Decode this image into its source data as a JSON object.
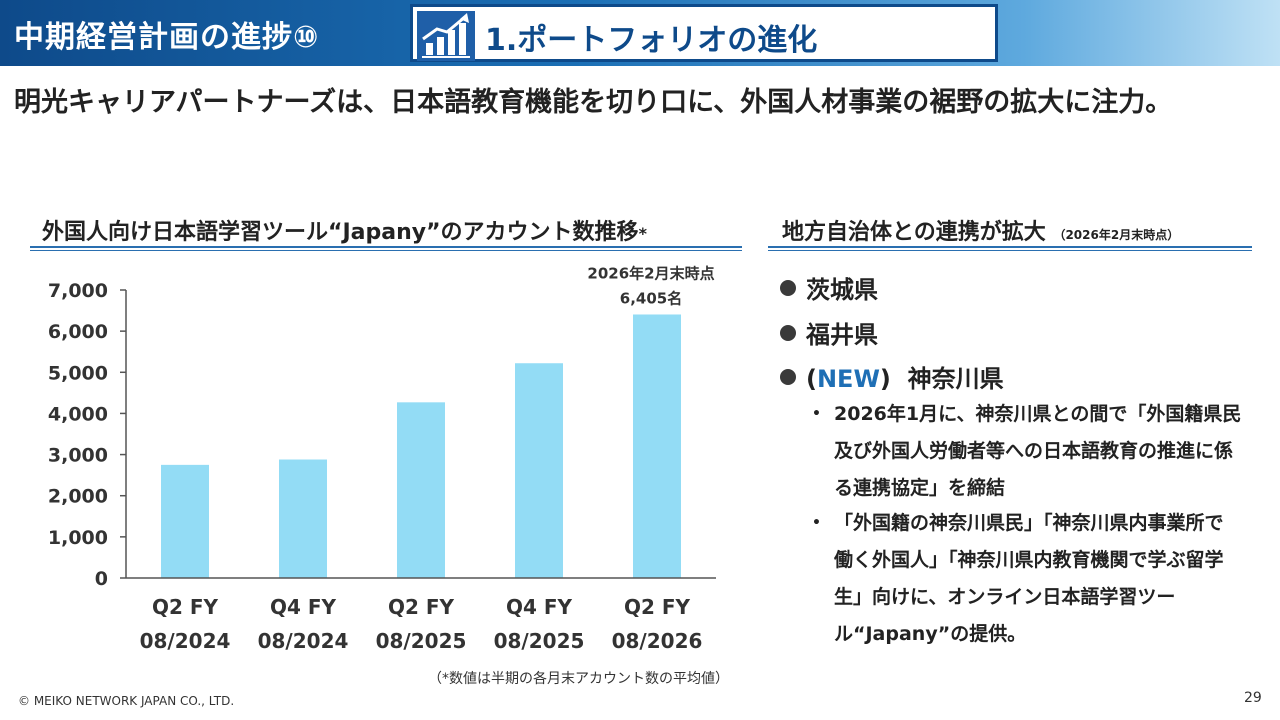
{
  "header": {
    "title": "中期経営計画の進捗⑩",
    "subtitle": "1.ポートフォリオの進化",
    "icon": "growth-chart-icon"
  },
  "lead": "明光キャリアパートナーズは、日本語教育機能を切り口に、外国人材事業の裾野の拡大に注力。",
  "left_section": {
    "heading": "外国人向け日本語学習ツール“Japany”のアカウント数推移",
    "asterisk": "*",
    "note": "（*数値は半期の各月末アカウント数の平均値）"
  },
  "right_section": {
    "heading": "地方自治体との連携が拡大",
    "heading_note": "（2026年2月末時点）",
    "prefectures": [
      {
        "tag": "",
        "name": "茨城県"
      },
      {
        "tag": "",
        "name": "福井県"
      },
      {
        "tag": "NEW",
        "name": "神奈川県"
      }
    ],
    "bullets": [
      "2026年1月に、神奈川県との間で「外国籍県民及び外国人労働者等への日本語教育の推進に係る連携協定」を締結",
      "「外国籍の神奈川県民」「神奈川県内事業所で働く外国人」「神奈川県内教育機関で学ぶ留学生」向けに、オンライン日本語学習ツール“Japany”の提供。"
    ]
  },
  "chart_data": {
    "type": "bar",
    "categories": [
      [
        "Q2 FY",
        "08/2024"
      ],
      [
        "Q4 FY",
        "08/2024"
      ],
      [
        "Q2 FY",
        "08/2025"
      ],
      [
        "Q4 FY",
        "08/2025"
      ],
      [
        "Q2 FY",
        "08/2026"
      ]
    ],
    "values": [
      2750,
      2880,
      4270,
      5220,
      6405
    ],
    "ylim": [
      0,
      7000
    ],
    "yticks": [
      0,
      1000,
      2000,
      3000,
      4000,
      5000,
      6000,
      7000
    ],
    "ytick_labels": [
      "0",
      "1,000",
      "2,000",
      "3,000",
      "4,000",
      "5,000",
      "6,000",
      "7,000"
    ],
    "annotation": [
      "2026年2月末時点",
      "6,405名"
    ],
    "bar_color": "#93dcf5",
    "grid": false
  },
  "footer": {
    "copyright": "© MEIKO NETWORK JAPAN CO., LTD.",
    "page": "29"
  },
  "colors": {
    "header_dark": "#0e4a8a",
    "accent": "#1f6fb5"
  }
}
